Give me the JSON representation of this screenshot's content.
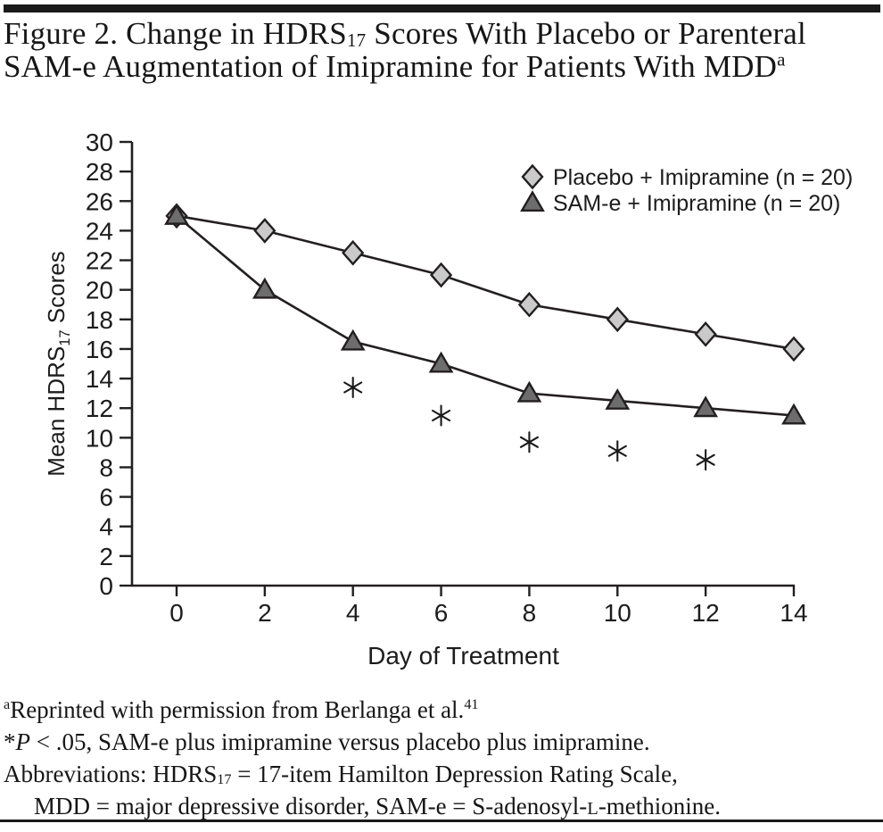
{
  "figure": {
    "title": {
      "line1_pre": "Figure 2. Change in HDRS",
      "line1_sub": "17",
      "line1_post": " Scores With Placebo or Parenteral",
      "line2_main": "SAM-e Augmentation of Imipramine for Patients With MDD",
      "line2_sup": "a"
    }
  },
  "chart_data": {
    "type": "line",
    "xlabel": "Day of Treatment",
    "ylabel_pre": "Mean HDRS",
    "ylabel_sub": "17",
    "ylabel_post": " Scores",
    "x": [
      0,
      2,
      4,
      6,
      8,
      10,
      12,
      14
    ],
    "xlim": [
      0,
      14
    ],
    "ylim": [
      0,
      30
    ],
    "ytick_step": 2,
    "grid": false,
    "legend_position": "top-right",
    "ink_color": "#231f20",
    "series": [
      {
        "name": "Placebo + Imipramine (n = 20)",
        "marker": "diamond",
        "marker_fill": "#cacaca",
        "line_color": "#231f20",
        "values": [
          25,
          24,
          22.5,
          21,
          19,
          18,
          17,
          16
        ]
      },
      {
        "name": "SAM-e + Imipramine (n = 20)",
        "marker": "triangle",
        "marker_fill": "#6d6d6d",
        "line_color": "#231f20",
        "values": [
          25,
          20,
          16.5,
          15,
          13,
          12.5,
          12,
          11.5
        ]
      }
    ],
    "annotations": [
      {
        "symbol": "*",
        "day": 4,
        "value": 13.4
      },
      {
        "symbol": "*",
        "day": 6,
        "value": 11.5
      },
      {
        "symbol": "*",
        "day": 8,
        "value": 9.7
      },
      {
        "symbol": "*",
        "day": 10,
        "value": 9.1
      },
      {
        "symbol": "*",
        "day": 12,
        "value": 8.5
      }
    ]
  },
  "footnotes": {
    "ref": {
      "sup_pre": "a",
      "text": "Reprinted with permission from Berlanga et al.",
      "sup_post": "41"
    },
    "significance": {
      "star": "*",
      "p_italic": "P",
      "text": " < .05, SAM-e plus imipramine versus placebo plus imipramine."
    },
    "abbreviations_1": {
      "pre": "Abbreviations: HDRS",
      "sub": "17",
      "post": " = 17-item Hamilton Depression Rating Scale,"
    },
    "abbreviations_2": {
      "pre": "MDD = major depressive disorder, SAM-e = S-adenosyl-",
      "smallcap": "L",
      "post": "-methionine."
    }
  }
}
